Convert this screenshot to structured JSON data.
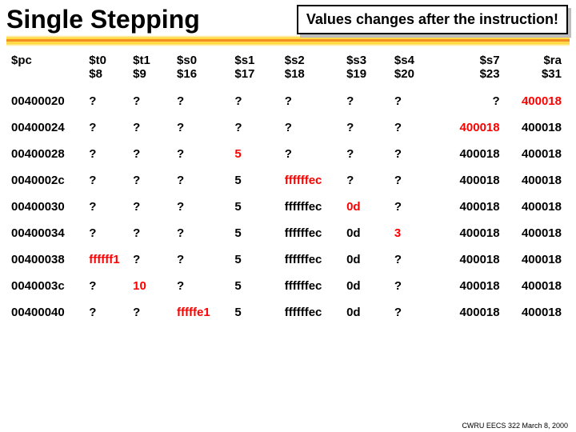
{
  "title": "Single Stepping",
  "callout": "Values changes after the instruction!",
  "footer": "CWRU EECS 322 March 8, 2000",
  "columns": [
    {
      "key": "pc",
      "top": "$pc",
      "sub": "",
      "cls": "col-pc"
    },
    {
      "key": "t0",
      "top": "$t0",
      "sub": "$8",
      "cls": "col-t0"
    },
    {
      "key": "t1",
      "top": "$t1",
      "sub": "$9",
      "cls": "col-t1"
    },
    {
      "key": "s0",
      "top": "$s0",
      "sub": "$16",
      "cls": "col-s0"
    },
    {
      "key": "s1",
      "top": "$s1",
      "sub": "$17",
      "cls": "col-s1"
    },
    {
      "key": "s2",
      "top": "$s2",
      "sub": "$18",
      "cls": "col-s2"
    },
    {
      "key": "s3",
      "top": "$s3",
      "sub": "$19",
      "cls": "col-s3"
    },
    {
      "key": "s4",
      "top": "$s4",
      "sub": "$20",
      "cls": "col-s4"
    },
    {
      "key": "s7",
      "top": "$s7",
      "sub": "$23",
      "cls": "col-s7 s7-col"
    },
    {
      "key": "ra",
      "top": "$ra",
      "sub": "$31",
      "cls": "col-ra ra-col"
    }
  ],
  "rows": [
    {
      "pc": "00400020",
      "cells": [
        {
          "v": "?",
          "c": "black"
        },
        {
          "v": "?",
          "c": "black"
        },
        {
          "v": "?",
          "c": "black"
        },
        {
          "v": "?",
          "c": "black"
        },
        {
          "v": "?",
          "c": "black"
        },
        {
          "v": "?",
          "c": "black"
        },
        {
          "v": "?",
          "c": "black"
        },
        {
          "v": "?",
          "c": "black"
        },
        {
          "v": "400018",
          "c": "red"
        }
      ]
    },
    {
      "pc": "00400024",
      "cells": [
        {
          "v": "?",
          "c": "black"
        },
        {
          "v": "?",
          "c": "black"
        },
        {
          "v": "?",
          "c": "black"
        },
        {
          "v": "?",
          "c": "black"
        },
        {
          "v": "?",
          "c": "black"
        },
        {
          "v": "?",
          "c": "black"
        },
        {
          "v": "?",
          "c": "black"
        },
        {
          "v": "400018",
          "c": "red"
        },
        {
          "v": "400018",
          "c": "black"
        }
      ]
    },
    {
      "pc": "00400028",
      "cells": [
        {
          "v": "?",
          "c": "black"
        },
        {
          "v": "?",
          "c": "black"
        },
        {
          "v": "?",
          "c": "black"
        },
        {
          "v": "5",
          "c": "red"
        },
        {
          "v": "?",
          "c": "black"
        },
        {
          "v": "?",
          "c": "black"
        },
        {
          "v": "?",
          "c": "black"
        },
        {
          "v": "400018",
          "c": "black"
        },
        {
          "v": "400018",
          "c": "black"
        }
      ]
    },
    {
      "pc": "0040002c",
      "cells": [
        {
          "v": "?",
          "c": "black"
        },
        {
          "v": "?",
          "c": "black"
        },
        {
          "v": "?",
          "c": "black"
        },
        {
          "v": "5",
          "c": "black"
        },
        {
          "v": "ffffffec",
          "c": "red"
        },
        {
          "v": "?",
          "c": "black"
        },
        {
          "v": "?",
          "c": "black"
        },
        {
          "v": "400018",
          "c": "black"
        },
        {
          "v": "400018",
          "c": "black"
        }
      ]
    },
    {
      "pc": "00400030",
      "cells": [
        {
          "v": "?",
          "c": "black"
        },
        {
          "v": "?",
          "c": "black"
        },
        {
          "v": "?",
          "c": "black"
        },
        {
          "v": "5",
          "c": "black"
        },
        {
          "v": "ffffffec",
          "c": "black"
        },
        {
          "v": "0d",
          "c": "red"
        },
        {
          "v": "?",
          "c": "black"
        },
        {
          "v": "400018",
          "c": "black"
        },
        {
          "v": "400018",
          "c": "black"
        }
      ]
    },
    {
      "pc": "00400034",
      "cells": [
        {
          "v": "?",
          "c": "black"
        },
        {
          "v": "?",
          "c": "black"
        },
        {
          "v": "?",
          "c": "black"
        },
        {
          "v": "5",
          "c": "black"
        },
        {
          "v": "ffffffec",
          "c": "black"
        },
        {
          "v": "0d",
          "c": "black"
        },
        {
          "v": "3",
          "c": "red"
        },
        {
          "v": "400018",
          "c": "black"
        },
        {
          "v": "400018",
          "c": "black"
        }
      ]
    },
    {
      "pc": "00400038",
      "cells": [
        {
          "v": "ffffff1",
          "c": "red"
        },
        {
          "v": "?",
          "c": "black"
        },
        {
          "v": "?",
          "c": "black"
        },
        {
          "v": "5",
          "c": "black"
        },
        {
          "v": "ffffffec",
          "c": "black"
        },
        {
          "v": "0d",
          "c": "black"
        },
        {
          "v": "?",
          "c": "black"
        },
        {
          "v": "400018",
          "c": "black"
        },
        {
          "v": "400018",
          "c": "black"
        }
      ]
    },
    {
      "pc": "0040003c",
      "cells": [
        {
          "v": "?",
          "c": "black"
        },
        {
          "v": "10",
          "c": "red"
        },
        {
          "v": "?",
          "c": "black"
        },
        {
          "v": "5",
          "c": "black"
        },
        {
          "v": "ffffffec",
          "c": "black"
        },
        {
          "v": "0d",
          "c": "black"
        },
        {
          "v": "?",
          "c": "black"
        },
        {
          "v": "400018",
          "c": "black"
        },
        {
          "v": "400018",
          "c": "black"
        }
      ]
    },
    {
      "pc": "00400040",
      "cells": [
        {
          "v": "?",
          "c": "black"
        },
        {
          "v": "?",
          "c": "black"
        },
        {
          "v": "fffffe1",
          "c": "red"
        },
        {
          "v": "5",
          "c": "black"
        },
        {
          "v": "ffffffec",
          "c": "black"
        },
        {
          "v": "0d",
          "c": "black"
        },
        {
          "v": "?",
          "c": "black"
        },
        {
          "v": "400018",
          "c": "black"
        },
        {
          "v": "400018",
          "c": "black"
        }
      ]
    }
  ]
}
